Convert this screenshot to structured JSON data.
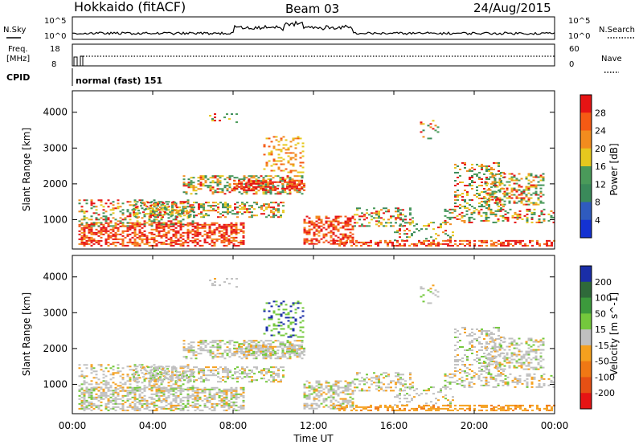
{
  "header": {
    "station": "Hokkaido (fitACF)",
    "beam": "Beam 03",
    "date": "24/Aug/2015"
  },
  "top_panel": {
    "nsky_label": "N.Sky",
    "nsearch_label": "N.Search",
    "left_ticks": [
      "10^5",
      "10^0"
    ],
    "right_ticks": [
      "10^5",
      "10^0"
    ],
    "freq_label_1": "Freq.",
    "freq_label_2": "[MHz]",
    "freq_ticks": [
      "18",
      "8"
    ],
    "nave_label": "Nave",
    "nave_ticks": [
      "60",
      "0"
    ],
    "cpid_label": "CPID",
    "cpid_value": "normal (fast) 151"
  },
  "colors": {
    "power_scale": [
      "#1432d2",
      "#2f5bbf",
      "#3a8a5a",
      "#4a9a5a",
      "#e6c81e",
      "#f28c1e",
      "#f55a14",
      "#e61414"
    ],
    "velocity_scale": [
      "#1a2ea8",
      "#2f6a3a",
      "#3c9a3c",
      "#74c83c",
      "#c0c0c0",
      "#f5a01e",
      "#f07814",
      "#e65014",
      "#e61414"
    ]
  },
  "chart_data": [
    {
      "type": "heatmap",
      "name": "power",
      "ylabel": "Slant Range [km]",
      "xlabel": "Time UT",
      "x_ticks": [
        "00:00",
        "04:00",
        "08:00",
        "12:00",
        "16:00",
        "20:00",
        "00:00"
      ],
      "y_ticks": [
        "1000",
        "2000",
        "3000",
        "4000"
      ],
      "ylim": [
        180,
        4600
      ],
      "xlim_hours": [
        0,
        24
      ],
      "colorbar_label": "Power [dB]",
      "colorbar_ticks": [
        "4",
        "8",
        "12",
        "16",
        "20",
        "24",
        "28"
      ],
      "clim": [
        0,
        32
      ]
    },
    {
      "type": "heatmap",
      "name": "velocity",
      "ylabel": "Slant Range [km]",
      "xlabel": "Time UT",
      "x_ticks": [
        "00:00",
        "04:00",
        "08:00",
        "12:00",
        "16:00",
        "20:00",
        "00:00"
      ],
      "y_ticks": [
        "1000",
        "2000",
        "3000",
        "4000"
      ],
      "ylim": [
        180,
        4600
      ],
      "xlim_hours": [
        0,
        24
      ],
      "colorbar_label": "Velocity [m s^-1]",
      "colorbar_ticks": [
        "200",
        "100",
        "50",
        "15",
        "-15",
        "-50",
        "-100",
        "-200"
      ]
    }
  ],
  "axis": {
    "time_label": "Time UT"
  }
}
